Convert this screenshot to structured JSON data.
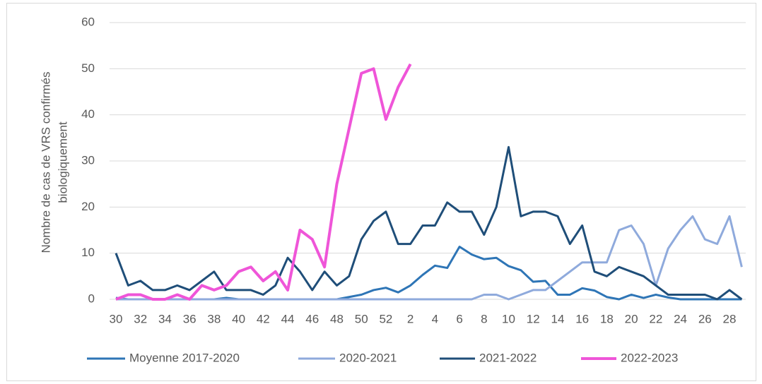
{
  "chart_data": {
    "type": "line",
    "y_label": [
      "Nombre de cas de VRS confirmés",
      "biologiquement"
    ],
    "categories": [
      "30",
      null,
      "32",
      null,
      "34",
      null,
      "36",
      null,
      "38",
      null,
      "40",
      null,
      "42",
      null,
      "44",
      null,
      "46",
      null,
      "48",
      null,
      "50",
      null,
      "52",
      null,
      "2",
      null,
      "4",
      null,
      "6",
      null,
      "8",
      null,
      "10",
      null,
      "12",
      null,
      "14",
      null,
      "16",
      null,
      "18",
      null,
      "20",
      null,
      "22",
      null,
      "24",
      null,
      "26",
      null,
      "28",
      null
    ],
    "ylim": [
      0,
      60
    ],
    "yticks": [
      0,
      10,
      20,
      30,
      40,
      50,
      60
    ],
    "grid": true,
    "legend": "bottom",
    "series": [
      {
        "name": "Moyenne 2017-2020",
        "color": "#2e75b6",
        "values": [
          0.3,
          0,
          0,
          0,
          0,
          0,
          0,
          0,
          0,
          0.3,
          0,
          0,
          0,
          0,
          0,
          0,
          0,
          0,
          0,
          0.5,
          1,
          2,
          2.5,
          1.5,
          3,
          5.3,
          7.3,
          6.8,
          11.4,
          9.7,
          8.7,
          9,
          7.2,
          6.3,
          3.8,
          4,
          1,
          1,
          2.4,
          1.9,
          0.5,
          0,
          1,
          0.3,
          1,
          0.4,
          0,
          0,
          0,
          0,
          0,
          0
        ]
      },
      {
        "name": "2020-2021",
        "color": "#8faadc",
        "values": [
          0,
          0,
          0,
          0,
          0,
          0,
          0,
          0,
          0,
          0,
          0,
          0,
          0,
          0,
          0,
          0,
          0,
          0,
          0,
          0,
          0,
          0,
          0,
          0,
          0,
          0,
          0,
          0,
          0,
          0,
          1,
          1,
          0,
          1,
          2,
          2,
          4,
          6,
          8,
          8,
          8,
          15,
          16,
          12,
          3,
          11,
          15,
          18,
          13,
          12,
          18,
          7
        ]
      },
      {
        "name": "2021-2022",
        "color": "#1f4e79",
        "values": [
          10,
          3,
          4,
          2,
          2,
          3,
          2,
          4,
          6,
          2,
          2,
          2,
          1,
          3,
          9,
          6,
          2,
          6,
          3,
          5,
          13,
          17,
          19,
          12,
          12,
          16,
          16,
          21,
          19,
          19,
          14,
          20,
          33,
          18,
          19,
          19,
          18,
          12,
          16,
          6,
          5,
          7,
          6,
          5,
          3,
          1,
          1,
          1,
          1,
          0,
          2,
          0
        ]
      },
      {
        "name": "2022-2023",
        "color": "#ef55d8",
        "values": [
          0,
          1,
          1,
          0,
          0,
          1,
          0,
          3,
          2,
          3,
          6,
          7,
          4,
          6,
          2,
          15,
          13,
          7,
          25,
          37,
          49,
          50,
          39,
          46,
          51,
          null,
          null,
          null,
          null,
          null,
          null,
          null,
          null,
          null,
          null,
          null,
          null,
          null,
          null,
          null,
          null,
          null,
          null,
          null,
          null,
          null,
          null,
          null,
          null,
          null,
          null,
          null
        ]
      }
    ]
  }
}
